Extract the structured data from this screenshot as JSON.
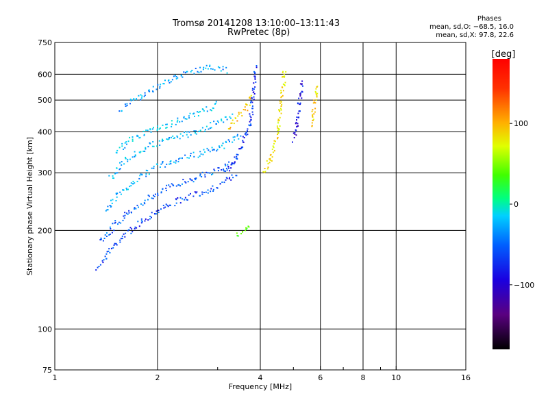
{
  "header": {
    "title": "Tromsø 20141208 13:10:00–13:11:43",
    "subtitle": "RwPretec (8p)"
  },
  "phase_stats": {
    "heading": "Phases",
    "line_o": "mean, sd,O: −68.5, 16.0",
    "line_x": "mean, sd,X:  97.8, 22.6"
  },
  "chart_data": {
    "type": "scatter",
    "xlabel": "Frequency [MHz]",
    "ylabel": "Stationary phase Virtual Height [km]",
    "xscale": "log",
    "yscale": "log",
    "xlim": [
      1,
      16
    ],
    "ylim": [
      75,
      750
    ],
    "x_ticks": [
      1,
      2,
      4,
      6,
      8,
      10,
      16
    ],
    "x_tick_labels": [
      "1",
      "2",
      "4",
      "6",
      "8",
      "10",
      "16"
    ],
    "x_minor_ticks": [
      3,
      5,
      7,
      9
    ],
    "y_ticks": [
      75,
      100,
      200,
      300,
      400,
      500,
      600,
      750
    ],
    "y_tick_labels": [
      "75",
      "100",
      "200",
      "300",
      "400",
      "500",
      "600",
      "750"
    ],
    "grid": true,
    "colorbar": {
      "label": "[deg]",
      "range": [
        -180,
        180
      ],
      "ticks": [
        100,
        0,
        -100
      ],
      "tick_labels": [
        "100",
        "0",
        "−100"
      ]
    },
    "traces": [
      {
        "name": "",
        "phase": -90,
        "points": [
          [
            1.33,
            155
          ],
          [
            1.45,
            175
          ],
          [
            1.6,
            195
          ],
          [
            1.8,
            215
          ],
          [
            2.0,
            232
          ],
          [
            2.3,
            248
          ],
          [
            2.7,
            262
          ],
          [
            3.1,
            280
          ],
          [
            3.4,
            300
          ]
        ]
      },
      {
        "name": "",
        "phase": -80,
        "points": [
          [
            1.35,
            185
          ],
          [
            1.5,
            210
          ],
          [
            1.7,
            235
          ],
          [
            1.95,
            258
          ],
          [
            2.25,
            278
          ],
          [
            2.6,
            292
          ],
          [
            3.0,
            308
          ],
          [
            3.4,
            330
          ]
        ]
      },
      {
        "name": "",
        "phase": -60,
        "points": [
          [
            1.4,
            230
          ],
          [
            1.55,
            262
          ],
          [
            1.75,
            290
          ],
          [
            2.0,
            315
          ],
          [
            2.3,
            332
          ],
          [
            2.7,
            345
          ],
          [
            3.1,
            365
          ],
          [
            3.5,
            395
          ]
        ]
      },
      {
        "name": "",
        "phase": -55,
        "points": [
          [
            1.45,
            290
          ],
          [
            1.6,
            330
          ],
          [
            1.85,
            360
          ],
          [
            2.1,
            380
          ],
          [
            2.45,
            395
          ],
          [
            2.85,
            420
          ],
          [
            3.3,
            450
          ]
        ]
      },
      {
        "name": "",
        "phase": -50,
        "points": [
          [
            1.5,
            350
          ],
          [
            1.7,
            385
          ],
          [
            1.95,
            410
          ],
          [
            2.25,
            430
          ],
          [
            2.6,
            455
          ],
          [
            3.0,
            490
          ]
        ]
      },
      {
        "name": "",
        "phase": -65,
        "points": [
          [
            1.55,
            470
          ],
          [
            1.8,
            520
          ],
          [
            2.1,
            570
          ],
          [
            2.4,
            610
          ],
          [
            2.8,
            630
          ],
          [
            3.2,
            620
          ]
        ]
      },
      {
        "name": "",
        "phase": -95,
        "points": [
          [
            3.1,
            300
          ],
          [
            3.3,
            320
          ],
          [
            3.5,
            360
          ],
          [
            3.7,
            420
          ],
          [
            3.8,
            520
          ],
          [
            3.85,
            640
          ]
        ]
      },
      {
        "name": "",
        "phase": 115,
        "points": [
          [
            3.2,
            410
          ],
          [
            3.4,
            440
          ],
          [
            3.6,
            470
          ],
          [
            3.75,
            520
          ]
        ]
      },
      {
        "name": "",
        "phase": 100,
        "points": [
          [
            4.1,
            300
          ],
          [
            4.3,
            340
          ],
          [
            4.5,
            410
          ],
          [
            4.6,
            500
          ],
          [
            4.7,
            630
          ]
        ]
      },
      {
        "name": "",
        "phase": -110,
        "points": [
          [
            5.0,
            380
          ],
          [
            5.1,
            430
          ],
          [
            5.2,
            500
          ],
          [
            5.3,
            580
          ]
        ]
      },
      {
        "name": "",
        "phase": 110,
        "points": [
          [
            5.6,
            420
          ],
          [
            5.7,
            470
          ],
          [
            5.8,
            520
          ],
          [
            5.85,
            560
          ]
        ]
      },
      {
        "name": "",
        "phase": 40,
        "points": [
          [
            3.4,
            195
          ],
          [
            3.6,
            200
          ],
          [
            3.7,
            210
          ]
        ]
      }
    ]
  }
}
